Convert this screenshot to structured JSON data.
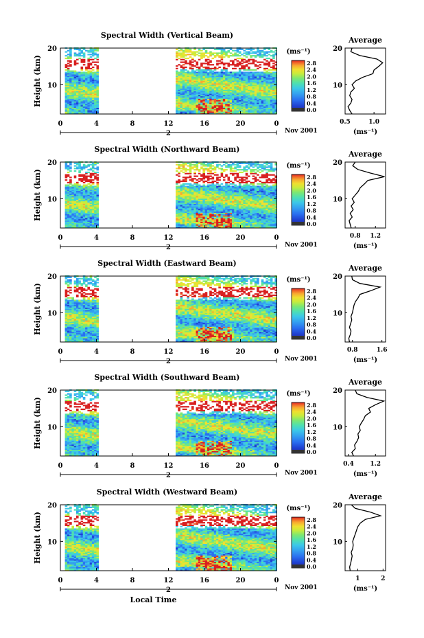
{
  "chart_data": [
    {
      "type": "heatmap",
      "title": "Spectral Width (Vertical Beam)",
      "ylabel": "Height (km)",
      "xticks": [
        "0",
        "4",
        "8",
        "12",
        "16",
        "20",
        "0"
      ],
      "date_marker": "2",
      "date_label": "Nov 2001",
      "yticks": [
        "20",
        "10"
      ],
      "ylim": [
        2,
        20
      ],
      "xlim": [
        0,
        24
      ],
      "data_blocks_hours": [
        [
          0.5,
          4.2
        ],
        [
          12.8,
          24
        ]
      ],
      "colorbar": {
        "unit": "(ms⁻¹)",
        "ticks": [
          "2.8",
          "2.4",
          "2.0",
          "1.6",
          "1.2",
          "0.8",
          "0.4",
          "0.0"
        ]
      },
      "average_profile": {
        "title": "Average",
        "xlabel": "(ms⁻¹)",
        "xticks": [
          "0.5",
          "1.0"
        ],
        "xlim": [
          0.5,
          1.2
        ],
        "heights_km": [
          2,
          3,
          4,
          5,
          6,
          7,
          8,
          9,
          10,
          11,
          12,
          13,
          14,
          15,
          16,
          17,
          18,
          19,
          20
        ],
        "values": [
          0.62,
          0.58,
          0.55,
          0.6,
          0.62,
          0.58,
          0.6,
          0.66,
          0.62,
          0.68,
          0.8,
          0.98,
          1.0,
          1.08,
          1.15,
          1.05,
          0.75,
          0.6,
          0.62
        ]
      }
    },
    {
      "type": "heatmap",
      "title": "Spectral Width (Northward Beam)",
      "ylabel": "Height (km)",
      "xticks": [
        "0",
        "4",
        "8",
        "12",
        "16",
        "20",
        "0"
      ],
      "date_marker": "2",
      "date_label": "Nov 2001",
      "yticks": [
        "20",
        "10"
      ],
      "ylim": [
        2,
        20
      ],
      "xlim": [
        0,
        24
      ],
      "data_blocks_hours": [
        [
          0.5,
          4.2
        ],
        [
          12.8,
          24
        ]
      ],
      "colorbar": {
        "unit": "(ms⁻¹)",
        "ticks": [
          "2.8",
          "2.4",
          "2.0",
          "1.6",
          "1.2",
          "0.8",
          "0.4",
          "0.0"
        ]
      },
      "average_profile": {
        "title": "Average",
        "xlabel": "(ms⁻¹)",
        "xticks": [
          "0.8",
          "1.2"
        ],
        "xlim": [
          0.6,
          1.4
        ],
        "heights_km": [
          2,
          3,
          4,
          5,
          6,
          7,
          8,
          9,
          10,
          11,
          12,
          13,
          14,
          15,
          16,
          17,
          18,
          19,
          20
        ],
        "values": [
          0.72,
          0.7,
          0.68,
          0.74,
          0.7,
          0.76,
          0.72,
          0.78,
          0.74,
          0.8,
          0.86,
          0.9,
          0.98,
          1.05,
          1.38,
          1.1,
          0.85,
          0.75,
          0.8
        ]
      }
    },
    {
      "type": "heatmap",
      "title": "Spectral Width (Eastward Beam)",
      "ylabel": "Height (km)",
      "xticks": [
        "0",
        "4",
        "8",
        "12",
        "16",
        "20",
        "0"
      ],
      "date_marker": "2",
      "date_label": "Nov 2001",
      "yticks": [
        "20",
        "10"
      ],
      "ylim": [
        2,
        20
      ],
      "xlim": [
        0,
        24
      ],
      "data_blocks_hours": [
        [
          0.5,
          4.2
        ],
        [
          12.8,
          24
        ]
      ],
      "colorbar": {
        "unit": "(ms⁻¹)",
        "ticks": [
          "2.8",
          "2.4",
          "2.0",
          "1.6",
          "1.2",
          "0.8",
          "0.4",
          "0.0"
        ]
      },
      "average_profile": {
        "title": "Average",
        "xlabel": "(ms⁻¹)",
        "xticks": [
          "0.8",
          "1.6"
        ],
        "xlim": [
          0.6,
          1.7
        ],
        "heights_km": [
          2,
          3,
          4,
          5,
          6,
          7,
          8,
          9,
          10,
          11,
          12,
          13,
          14,
          15,
          16,
          17,
          18,
          19,
          20
        ],
        "values": [
          0.72,
          0.7,
          0.74,
          0.76,
          0.72,
          0.75,
          0.78,
          0.76,
          0.8,
          0.82,
          0.84,
          0.88,
          0.95,
          1.0,
          1.3,
          1.55,
          1.0,
          0.8,
          0.78
        ]
      }
    },
    {
      "type": "heatmap",
      "title": "Spectral Width (Southward Beam)",
      "ylabel": "Height (km)",
      "xticks": [
        "0",
        "4",
        "8",
        "12",
        "16",
        "20",
        "0"
      ],
      "date_marker": "2",
      "date_label": "Nov 2001",
      "yticks": [
        "20",
        "10"
      ],
      "ylim": [
        2,
        20
      ],
      "xlim": [
        0,
        24
      ],
      "data_blocks_hours": [
        [
          0.5,
          4.2
        ],
        [
          12.8,
          24
        ]
      ],
      "colorbar": {
        "unit": "(ms⁻¹)",
        "ticks": [
          "2.8",
          "2.4",
          "2.0",
          "1.6",
          "1.2",
          "0.8",
          "0.4",
          "0.0"
        ]
      },
      "average_profile": {
        "title": "Average",
        "xlabel": "(ms⁻¹)",
        "xticks": [
          "0.4",
          "1.2"
        ],
        "xlim": [
          0.3,
          1.5
        ],
        "heights_km": [
          2,
          3,
          4,
          5,
          6,
          7,
          8,
          9,
          10,
          11,
          12,
          13,
          14,
          15,
          16,
          17,
          18,
          19,
          20
        ],
        "values": [
          0.55,
          0.5,
          0.6,
          0.58,
          0.65,
          0.7,
          0.68,
          0.75,
          0.72,
          0.78,
          0.85,
          0.9,
          1.05,
          1.0,
          1.2,
          1.45,
          0.95,
          0.65,
          0.6
        ]
      }
    },
    {
      "type": "heatmap",
      "title": "Spectral Width (Westward Beam)",
      "ylabel": "Height (km)",
      "xlabel": "Local Time",
      "xticks": [
        "0",
        "4",
        "8",
        "12",
        "16",
        "20",
        "0"
      ],
      "date_marker": "2",
      "date_label": "Nov 2001",
      "yticks": [
        "20",
        "10"
      ],
      "ylim": [
        2,
        20
      ],
      "xlim": [
        0,
        24
      ],
      "data_blocks_hours": [
        [
          0.5,
          4.2
        ],
        [
          12.8,
          24
        ]
      ],
      "colorbar": {
        "unit": "(ms⁻¹)",
        "ticks": [
          "2.8",
          "2.4",
          "2.0",
          "1.6",
          "1.2",
          "0.8",
          "0.4",
          "0.0"
        ]
      },
      "average_profile": {
        "title": "Average",
        "xlabel": "(ms⁻¹)",
        "xticks": [
          "1",
          "2"
        ],
        "xlim": [
          0.5,
          2.1
        ],
        "heights_km": [
          2,
          3,
          4,
          5,
          6,
          7,
          8,
          9,
          10,
          11,
          12,
          13,
          14,
          15,
          16,
          17,
          18,
          19,
          20
        ],
        "values": [
          0.7,
          0.68,
          0.72,
          0.75,
          0.78,
          0.74,
          0.8,
          0.82,
          0.8,
          0.85,
          0.9,
          0.95,
          1.0,
          1.1,
          1.3,
          1.9,
          1.5,
          0.9,
          0.75
        ]
      }
    }
  ],
  "colormap": [
    "#2a2a9a",
    "#1f3fd0",
    "#2a6ff0",
    "#34a0f0",
    "#3cc8e8",
    "#4ee0b0",
    "#7ee870",
    "#c8ec3c",
    "#f0e030",
    "#f8a830",
    "#f06028",
    "#d82020"
  ]
}
